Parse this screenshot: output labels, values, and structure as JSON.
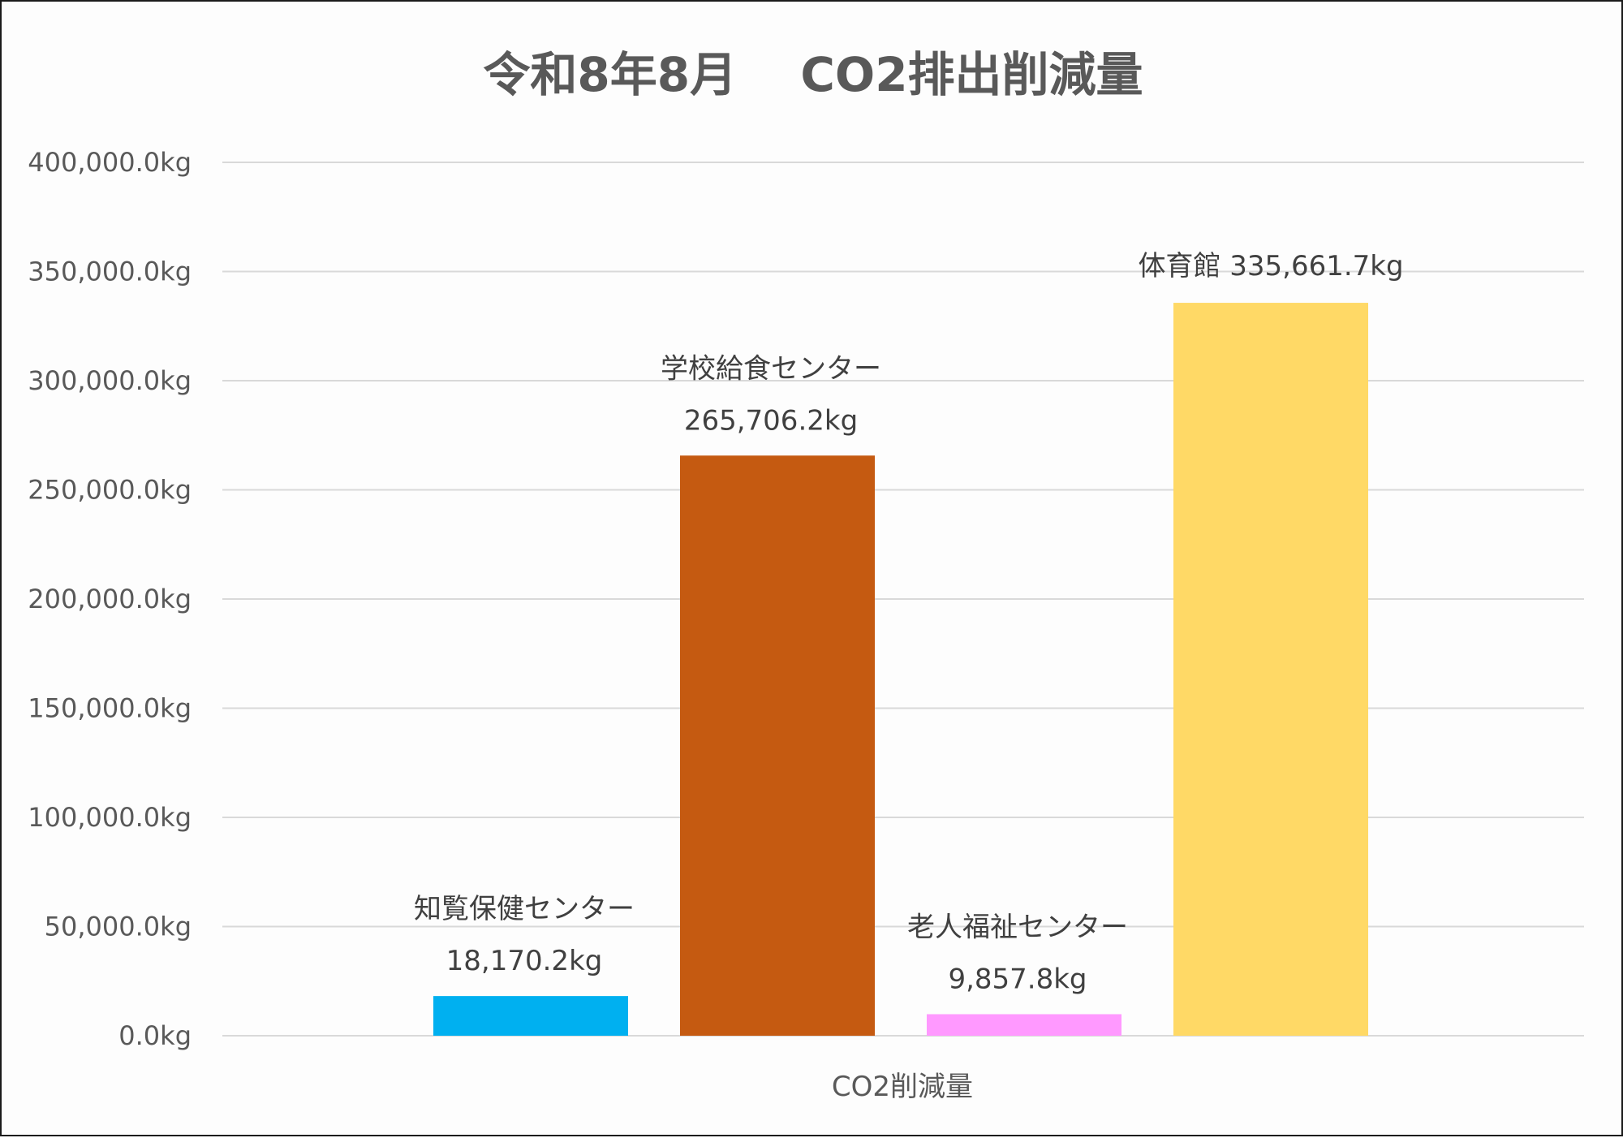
{
  "chart_data": {
    "type": "bar",
    "title": "令和8年8月　 CO2排出削減量",
    "xlabel": "CO2削減量",
    "ylabel": "",
    "ylim": [
      0,
      400000
    ],
    "yticks": [
      0,
      50000,
      100000,
      150000,
      200000,
      250000,
      300000,
      350000,
      400000
    ],
    "ytick_labels": [
      "0.0kg",
      "50,000.0kg",
      "100,000.0kg",
      "150,000.0kg",
      "200,000.0kg",
      "250,000.0kg",
      "300,000.0kg",
      "350,000.0kg",
      "400,000.0kg"
    ],
    "grid": true,
    "categories": [
      "知覧保健センター",
      "学校給食センター",
      "老人福祉センター",
      "体育館"
    ],
    "values": [
      18170.2,
      265706.2,
      9857.8,
      335661.7
    ],
    "value_labels": [
      "18,170.2kg",
      "265,706.2kg",
      "9,857.8kg",
      "335,661.7kg"
    ],
    "colors": [
      "#00b0f0",
      "#c55a11",
      "#ff99ff",
      "#ffd966"
    ],
    "label_layout": [
      "stacked",
      "stacked",
      "stacked",
      "inline"
    ]
  }
}
